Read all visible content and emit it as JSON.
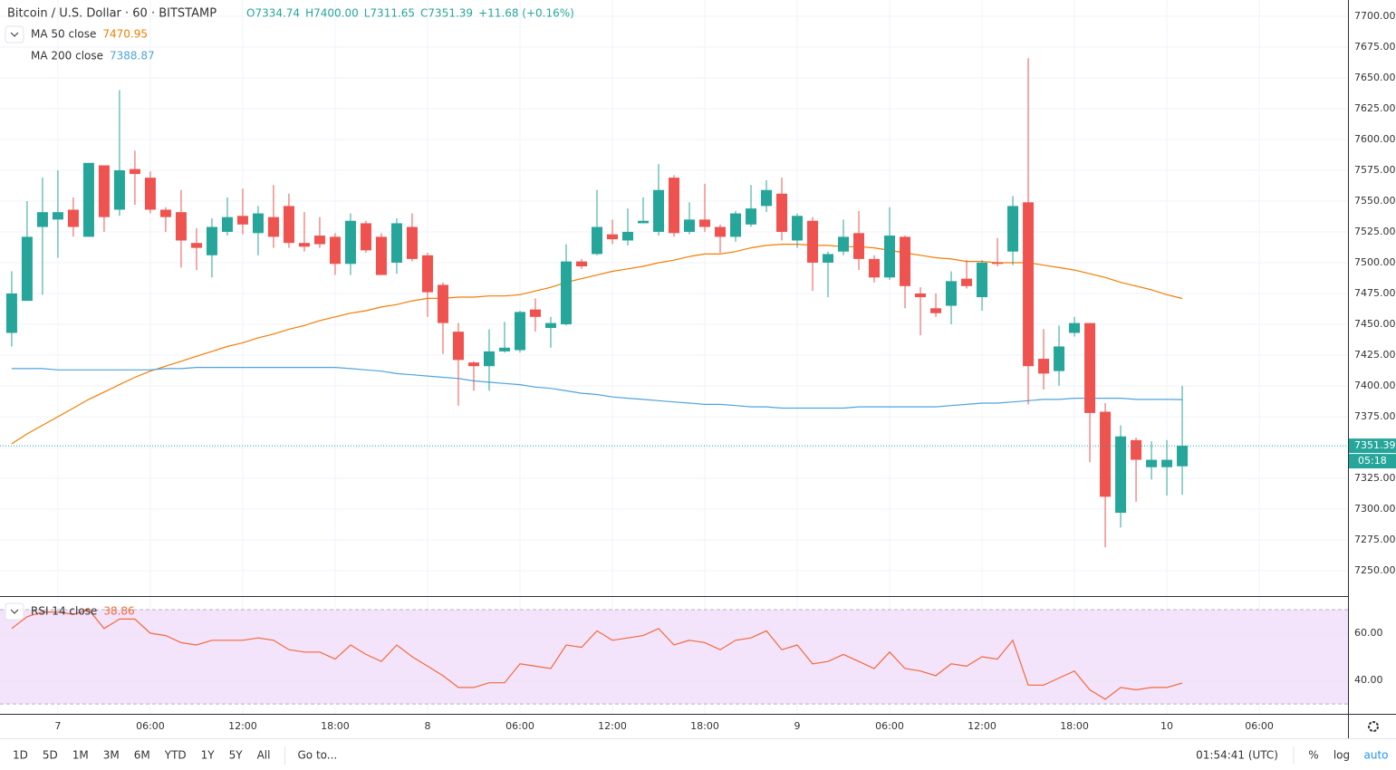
{
  "header": {
    "symbol": "Bitcoin / U.S. Dollar · 60 · BITSTAMP",
    "ohlc": [
      "O7334.74",
      "H7400.00",
      "L7311.65",
      "C7351.39"
    ],
    "change": "+11.68 (+0.16%)"
  },
  "chart_data": [
    {
      "type": "candlestick",
      "up_color": "#26a69a",
      "down_color": "#ef5350",
      "grid": true,
      "x": [
        -3,
        -2,
        -1,
        0,
        1,
        2,
        3,
        4,
        5,
        6,
        7,
        8,
        9,
        10,
        11,
        12,
        13,
        14,
        15,
        16,
        17,
        18,
        19,
        20,
        21,
        22,
        23,
        24,
        25,
        26,
        27,
        28,
        29,
        30,
        31,
        32,
        33,
        34,
        35,
        36,
        37,
        38,
        39,
        40,
        41,
        42,
        43,
        44,
        45,
        46,
        47,
        48,
        49,
        50,
        51,
        52,
        53,
        54,
        55,
        56,
        57,
        58,
        59,
        60,
        61,
        62,
        63,
        64,
        65,
        66,
        67,
        68,
        69,
        70,
        71,
        72,
        73
      ],
      "open": [
        7443,
        7469,
        7529,
        7535,
        7543,
        7521,
        7579,
        7543,
        7576,
        7569,
        7543,
        7541,
        7516,
        7506,
        7525,
        7538,
        7524,
        7537,
        7546,
        7516,
        7522,
        7521,
        7499,
        7532,
        7521,
        7500,
        7529,
        7506,
        7482,
        7444,
        7419,
        7416,
        7428,
        7429,
        7462,
        7447,
        7450,
        7501,
        7507,
        7523,
        7518,
        7532,
        7525,
        7569,
        7525,
        7535,
        7529,
        7521,
        7531,
        7546,
        7556,
        7518,
        7534,
        7500,
        7509,
        7524,
        7503,
        7488,
        7521,
        7475,
        7463,
        7465,
        7487,
        7472,
        7500,
        7509,
        7549,
        7422,
        7412,
        7443,
        7451,
        7379,
        7297,
        7356,
        7334,
        7334,
        7334.74
      ],
      "high": [
        7493,
        7550,
        7569,
        7575,
        7553,
        7581,
        7579,
        7640,
        7591,
        7574,
        7545,
        7559,
        7528,
        7536,
        7553,
        7560,
        7546,
        7563,
        7556,
        7541,
        7537,
        7524,
        7540,
        7534,
        7524,
        7536,
        7540,
        7508,
        7484,
        7451,
        7420,
        7446,
        7452,
        7461,
        7471,
        7456,
        7515,
        7503,
        7559,
        7535,
        7544,
        7553,
        7580,
        7571,
        7549,
        7564,
        7531,
        7542,
        7563,
        7567,
        7569,
        7540,
        7537,
        7509,
        7535,
        7542,
        7506,
        7545,
        7522,
        7480,
        7475,
        7493,
        7502,
        7502,
        7520,
        7554,
        7666,
        7446,
        7449,
        7456,
        7451,
        7386,
        7368,
        7358,
        7355,
        7356,
        7400
      ],
      "low": [
        7432,
        7469,
        7474,
        7504,
        7521,
        7521,
        7525,
        7538,
        7547,
        7540,
        7525,
        7496,
        7494,
        7488,
        7522,
        7523,
        7506,
        7512,
        7512,
        7509,
        7512,
        7490,
        7490,
        7508,
        7490,
        7491,
        7501,
        7456,
        7426,
        7384,
        7396,
        7396,
        7427,
        7427,
        7444,
        7431,
        7449,
        7495,
        7506,
        7515,
        7514,
        7532,
        7522,
        7521,
        7523,
        7525,
        7508,
        7517,
        7529,
        7541,
        7518,
        7512,
        7477,
        7472,
        7506,
        7494,
        7484,
        7486,
        7463,
        7441,
        7456,
        7450,
        7479,
        7461,
        7497,
        7498,
        7385,
        7397,
        7400,
        7440,
        7338,
        7269,
        7285,
        7306,
        7324,
        7311,
        7311.65
      ],
      "close": [
        7475,
        7521,
        7541,
        7541,
        7529,
        7581,
        7537,
        7575,
        7572,
        7543,
        7537,
        7518,
        7512,
        7529,
        7537,
        7531,
        7540,
        7521,
        7516,
        7513,
        7515,
        7499,
        7534,
        7510,
        7490,
        7532,
        7503,
        7476,
        7451,
        7421,
        7416,
        7428,
        7431,
        7460,
        7456,
        7451,
        7501,
        7497,
        7529,
        7519,
        7525,
        7534,
        7559,
        7524,
        7535,
        7529,
        7521,
        7540,
        7544,
        7559,
        7525,
        7538,
        7500,
        7507,
        7521,
        7503,
        7488,
        7522,
        7481,
        7472,
        7459,
        7485,
        7481,
        7500,
        7499,
        7546,
        7416,
        7410,
        7432,
        7451,
        7378,
        7310,
        7359,
        7340,
        7340,
        7340,
        7351.39
      ],
      "series": [
        {
          "name": "MA 50 close",
          "color": "#f57c00",
          "values": [
            7353,
            7361,
            7368,
            7375,
            7382,
            7389,
            7395,
            7401,
            7407,
            7412,
            7416,
            7420,
            7424,
            7428,
            7432,
            7435,
            7439,
            7442,
            7446,
            7449,
            7453,
            7456,
            7459,
            7461,
            7464,
            7466,
            7469,
            7471,
            7471,
            7472,
            7472,
            7473,
            7473,
            7474,
            7477,
            7480,
            7484,
            7487,
            7490,
            7493,
            7495,
            7497,
            7500,
            7502,
            7505,
            7507,
            7507,
            7509,
            7512,
            7514,
            7515,
            7515,
            7514,
            7514,
            7513,
            7513,
            7512,
            7510,
            7508,
            7506,
            7504,
            7503,
            7501,
            7501,
            7500,
            7500,
            7500,
            7498,
            7496,
            7494,
            7491,
            7488,
            7484,
            7481,
            7478,
            7474,
            7470.95
          ]
        },
        {
          "name": "MA 200 close",
          "color": "#4fa3e0",
          "values": [
            7414,
            7414,
            7414,
            7413,
            7413,
            7413,
            7413,
            7413,
            7413,
            7413,
            7414,
            7414,
            7415,
            7415,
            7415,
            7415,
            7415,
            7415,
            7415,
            7415,
            7415,
            7415,
            7414,
            7413,
            7412,
            7410,
            7409,
            7408,
            7407,
            7406,
            7404,
            7403,
            7402,
            7401,
            7399,
            7398,
            7396,
            7394,
            7393,
            7391,
            7390,
            7389,
            7388,
            7387,
            7386,
            7385,
            7385,
            7384,
            7383,
            7383,
            7382,
            7382,
            7382,
            7382,
            7382,
            7383,
            7383,
            7383,
            7383,
            7383,
            7383,
            7384,
            7385,
            7386,
            7386,
            7387,
            7388,
            7389,
            7389,
            7390,
            7390,
            7390,
            7390,
            7389,
            7389,
            7389,
            7388.87
          ]
        }
      ],
      "xlim": [
        -3.76,
        83.76
      ],
      "xticks": [
        {
          "value": 0,
          "label": "7"
        },
        {
          "value": 6,
          "label": "06:00"
        },
        {
          "value": 12,
          "label": "12:00"
        },
        {
          "value": 18,
          "label": "18:00"
        },
        {
          "value": 24,
          "label": "8"
        },
        {
          "value": 30,
          "label": "06:00"
        },
        {
          "value": 36,
          "label": "12:00"
        },
        {
          "value": 42,
          "label": "18:00"
        },
        {
          "value": 48,
          "label": "9"
        },
        {
          "value": 54,
          "label": "06:00"
        },
        {
          "value": 60,
          "label": "12:00"
        },
        {
          "value": 66,
          "label": "18:00"
        },
        {
          "value": 72,
          "label": "10"
        },
        {
          "value": 78,
          "label": "06:00"
        }
      ],
      "ylim": [
        7229.4,
        7713.2
      ],
      "yticks": [
        {
          "value": 7250,
          "label": "7250.00"
        },
        {
          "value": 7275,
          "label": "7275.00"
        },
        {
          "value": 7300,
          "label": "7300.00"
        },
        {
          "value": 7325,
          "label": "7325.00"
        },
        {
          "value": 7350,
          "label": "7350.00"
        },
        {
          "value": 7375,
          "label": "7375.00"
        },
        {
          "value": 7400,
          "label": "7400.00"
        },
        {
          "value": 7425,
          "label": "7425.00"
        },
        {
          "value": 7450,
          "label": "7450.00"
        },
        {
          "value": 7475,
          "label": "7475.00"
        },
        {
          "value": 7500,
          "label": "7500.00"
        },
        {
          "value": 7525,
          "label": "7525.00"
        },
        {
          "value": 7550,
          "label": "7550.00"
        },
        {
          "value": 7575,
          "label": "7575.00"
        },
        {
          "value": 7600,
          "label": "7600.00"
        },
        {
          "value": 7625,
          "label": "7625.00"
        },
        {
          "value": 7650,
          "label": "7650.00"
        },
        {
          "value": 7675,
          "label": "7675.00"
        },
        {
          "value": 7700,
          "label": "7700.00"
        }
      ]
    },
    {
      "type": "line",
      "grid": true,
      "band_color": "#f3e3fb",
      "series": [
        {
          "name": "RSI 14 close",
          "color": "#f26b38",
          "values": [
            62,
            67,
            69,
            69,
            68,
            70,
            62,
            66,
            66,
            60,
            59,
            56,
            55,
            57,
            57,
            57,
            58,
            57,
            53,
            52,
            52,
            49,
            55,
            51,
            48,
            55,
            50,
            46,
            42,
            37,
            37,
            39,
            39,
            47,
            46,
            45,
            55,
            54,
            61,
            57,
            58,
            59,
            62,
            55,
            57,
            56,
            53,
            57,
            58,
            61,
            53,
            55,
            47,
            48,
            51,
            48,
            45,
            52,
            45,
            44,
            42,
            47,
            46,
            50,
            49,
            57,
            38,
            38,
            41,
            44,
            36,
            32,
            37,
            36,
            37,
            37,
            38.86
          ]
        }
      ],
      "bands": [
        30,
        70
      ],
      "ylim": [
        25.8,
        75
      ],
      "yticks": [
        {
          "value": 40,
          "label": "40.00"
        },
        {
          "value": 60,
          "label": "60.00"
        }
      ]
    }
  ],
  "ui": {
    "countdown": "05:18",
    "ranges": [
      "1D",
      "5D",
      "1M",
      "3M",
      "6M",
      "YTD",
      "1Y",
      "5Y",
      "All"
    ],
    "goto": "Go to...",
    "clock": "01:54:41 (UTC)",
    "percent": "%",
    "log": "log",
    "auto": "auto"
  }
}
